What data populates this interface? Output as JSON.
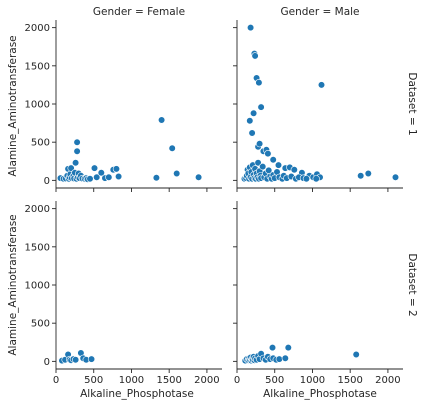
{
  "chart_data": {
    "type": "scatter",
    "xlabel": "Alkaline_Phosphotase",
    "ylabel": "Alamine_Aminotransferase",
    "xlim": [
      0,
      2200
    ],
    "ylim": [
      -100,
      2100
    ],
    "xticks": [
      0,
      500,
      1000,
      1500,
      2000
    ],
    "yticks": [
      0,
      500,
      1000,
      1500,
      2000
    ],
    "marker_color": "#1f77b4",
    "marker_edge": "#ffffff",
    "grid": false,
    "col_titles": [
      "Gender = Female",
      "Gender = Male"
    ],
    "row_titles": [
      "Dataset = 1",
      "Dataset = 2"
    ],
    "panels": [
      {
        "row": 0,
        "col": 0,
        "points": [
          [
            60,
            30
          ],
          [
            100,
            20
          ],
          [
            130,
            25
          ],
          [
            150,
            60
          ],
          [
            160,
            150
          ],
          [
            170,
            20
          ],
          [
            180,
            40
          ],
          [
            190,
            80
          ],
          [
            200,
            160
          ],
          [
            210,
            30
          ],
          [
            230,
            60
          ],
          [
            240,
            25
          ],
          [
            250,
            100
          ],
          [
            260,
            230
          ],
          [
            270,
            20
          ],
          [
            280,
            500
          ],
          [
            280,
            380
          ],
          [
            290,
            40
          ],
          [
            300,
            90
          ],
          [
            310,
            30
          ],
          [
            330,
            60
          ],
          [
            350,
            25
          ],
          [
            380,
            20
          ],
          [
            400,
            30
          ],
          [
            420,
            15
          ],
          [
            450,
            20
          ],
          [
            510,
            160
          ],
          [
            540,
            40
          ],
          [
            600,
            100
          ],
          [
            650,
            30
          ],
          [
            700,
            40
          ],
          [
            760,
            140
          ],
          [
            800,
            150
          ],
          [
            830,
            50
          ],
          [
            1330,
            35
          ],
          [
            1400,
            790
          ],
          [
            1540,
            420
          ],
          [
            1600,
            90
          ],
          [
            1890,
            40
          ]
        ]
      },
      {
        "row": 0,
        "col": 1,
        "points": [
          [
            180,
            2000
          ],
          [
            230,
            1660
          ],
          [
            240,
            1630
          ],
          [
            260,
            1340
          ],
          [
            290,
            1280
          ],
          [
            320,
            960
          ],
          [
            220,
            880
          ],
          [
            170,
            780
          ],
          [
            200,
            620
          ],
          [
            280,
            440
          ],
          [
            300,
            480
          ],
          [
            350,
            380
          ],
          [
            390,
            400
          ],
          [
            410,
            350
          ],
          [
            480,
            270
          ],
          [
            550,
            200
          ],
          [
            640,
            160
          ],
          [
            700,
            170
          ],
          [
            760,
            140
          ],
          [
            860,
            100
          ],
          [
            960,
            60
          ],
          [
            1010,
            40
          ],
          [
            1060,
            80
          ],
          [
            1100,
            40
          ],
          [
            1120,
            1250
          ],
          [
            1640,
            60
          ],
          [
            1740,
            90
          ],
          [
            2100,
            40
          ],
          [
            100,
            20
          ],
          [
            120,
            30
          ],
          [
            130,
            60
          ],
          [
            140,
            140
          ],
          [
            150,
            90
          ],
          [
            160,
            20
          ],
          [
            170,
            170
          ],
          [
            180,
            40
          ],
          [
            190,
            110
          ],
          [
            200,
            20
          ],
          [
            210,
            200
          ],
          [
            220,
            70
          ],
          [
            230,
            30
          ],
          [
            240,
            150
          ],
          [
            250,
            20
          ],
          [
            260,
            90
          ],
          [
            270,
            40
          ],
          [
            280,
            230
          ],
          [
            290,
            20
          ],
          [
            300,
            120
          ],
          [
            310,
            60
          ],
          [
            320,
            30
          ],
          [
            340,
            180
          ],
          [
            360,
            40
          ],
          [
            380,
            90
          ],
          [
            400,
            20
          ],
          [
            420,
            130
          ],
          [
            440,
            50
          ],
          [
            460,
            20
          ],
          [
            480,
            70
          ],
          [
            500,
            30
          ],
          [
            530,
            110
          ],
          [
            560,
            40
          ],
          [
            600,
            20
          ],
          [
            620,
            60
          ],
          [
            660,
            30
          ],
          [
            720,
            50
          ],
          [
            780,
            20
          ],
          [
            820,
            40
          ],
          [
            880,
            30
          ],
          [
            920,
            20
          ],
          [
            1050,
            20
          ]
        ]
      },
      {
        "row": 1,
        "col": 0,
        "points": [
          [
            80,
            10
          ],
          [
            120,
            20
          ],
          [
            160,
            90
          ],
          [
            180,
            25
          ],
          [
            200,
            15
          ],
          [
            230,
            30
          ],
          [
            260,
            20
          ],
          [
            330,
            110
          ],
          [
            360,
            40
          ],
          [
            400,
            20
          ],
          [
            470,
            30
          ]
        ]
      },
      {
        "row": 1,
        "col": 1,
        "points": [
          [
            110,
            10
          ],
          [
            130,
            30
          ],
          [
            150,
            15
          ],
          [
            160,
            40
          ],
          [
            170,
            20
          ],
          [
            180,
            50
          ],
          [
            190,
            10
          ],
          [
            200,
            30
          ],
          [
            210,
            20
          ],
          [
            220,
            60
          ],
          [
            230,
            15
          ],
          [
            240,
            40
          ],
          [
            260,
            20
          ],
          [
            280,
            70
          ],
          [
            300,
            30
          ],
          [
            320,
            100
          ],
          [
            350,
            40
          ],
          [
            380,
            20
          ],
          [
            410,
            60
          ],
          [
            440,
            30
          ],
          [
            470,
            180
          ],
          [
            480,
            40
          ],
          [
            520,
            20
          ],
          [
            560,
            30
          ],
          [
            640,
            40
          ],
          [
            680,
            180
          ],
          [
            1580,
            90
          ]
        ]
      }
    ]
  }
}
